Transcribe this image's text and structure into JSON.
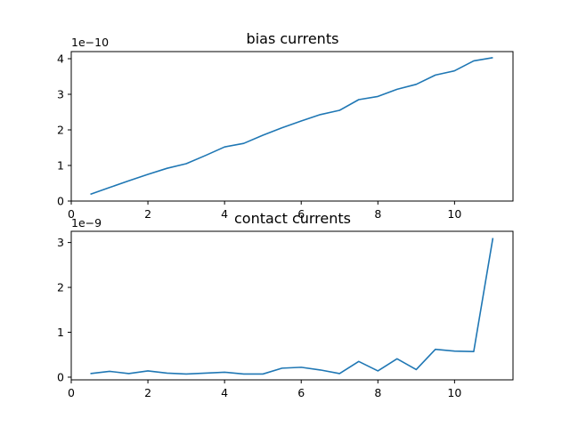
{
  "chart_data": [
    {
      "type": "line",
      "title": "bias currents",
      "xlabel": "",
      "ylabel": "",
      "offset_text": "1e−10",
      "scale": 1e-10,
      "xlim": [
        0,
        11.525
      ],
      "ylim": [
        0,
        4.2
      ],
      "xticks": [
        0,
        2,
        4,
        6,
        8,
        10
      ],
      "yticks": [
        0,
        1,
        2,
        3,
        4
      ],
      "grid": false,
      "color": "#1f77b4",
      "x": [
        0.5,
        1,
        1.5,
        2,
        2.5,
        3,
        3.5,
        4,
        4.5,
        5,
        5.5,
        6,
        6.5,
        7,
        7.5,
        8,
        8.5,
        9,
        9.5,
        10,
        10.5,
        11
      ],
      "y": [
        0.19,
        0.38,
        0.57,
        0.75,
        0.92,
        1.05,
        1.28,
        1.52,
        1.62,
        1.85,
        2.06,
        2.25,
        2.43,
        2.55,
        2.85,
        2.94,
        3.14,
        3.28,
        3.54,
        3.66,
        3.94,
        4.03
      ]
    },
    {
      "type": "line",
      "title": "contact currents",
      "xlabel": "",
      "ylabel": "",
      "offset_text": "1e−9",
      "scale": 1e-09,
      "xlim": [
        0,
        11.525
      ],
      "ylim": [
        -0.06,
        3.25
      ],
      "xticks": [
        0,
        2,
        4,
        6,
        8,
        10
      ],
      "yticks": [
        0,
        1,
        2,
        3
      ],
      "grid": false,
      "color": "#1f77b4",
      "x": [
        0.5,
        1,
        1.5,
        2,
        2.5,
        3,
        3.5,
        4,
        4.5,
        5,
        5.5,
        6,
        6.5,
        7,
        7.5,
        8,
        8.5,
        9,
        9.5,
        10,
        10.5,
        11
      ],
      "y": [
        0.08,
        0.13,
        0.08,
        0.14,
        0.09,
        0.07,
        0.09,
        0.11,
        0.07,
        0.07,
        0.2,
        0.22,
        0.16,
        0.08,
        0.35,
        0.14,
        0.41,
        0.17,
        0.62,
        0.58,
        0.57,
        3.1
      ]
    }
  ]
}
